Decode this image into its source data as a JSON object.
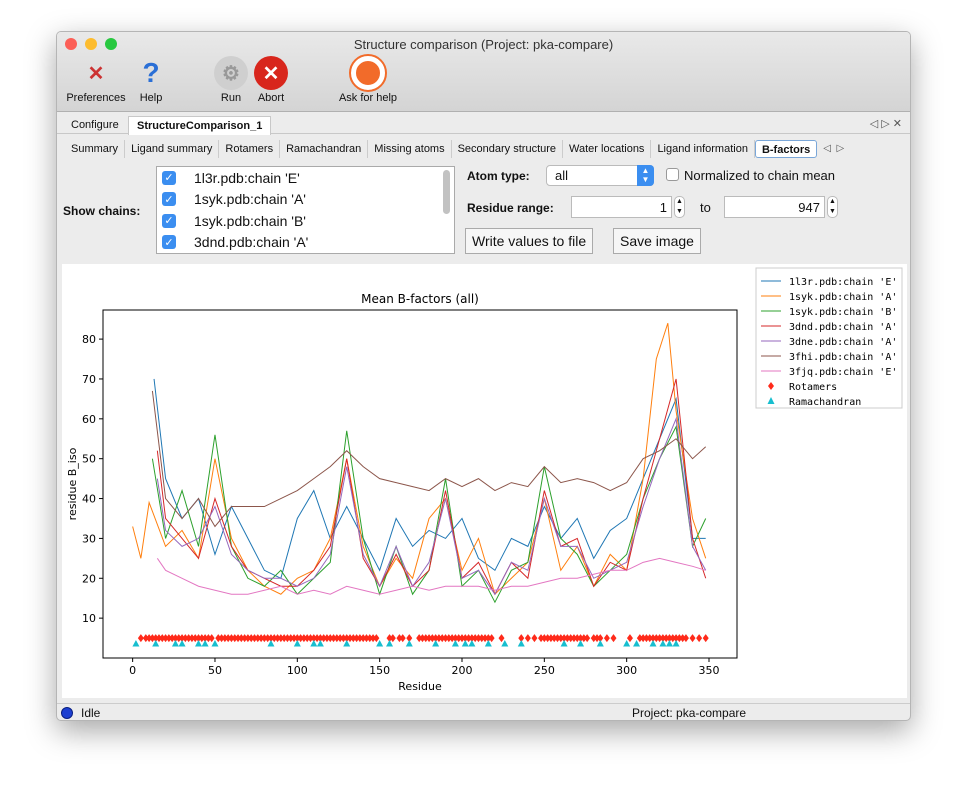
{
  "window": {
    "title": "Structure comparison (Project: pka-compare)"
  },
  "toolbar": [
    {
      "label": "Preferences",
      "icon": "preferences-icon"
    },
    {
      "label": "Help",
      "icon": "help-icon"
    },
    {
      "label": "Run",
      "icon": "run-gear-icon"
    },
    {
      "label": "Abort",
      "icon": "abort-icon"
    },
    {
      "label": "Ask for help",
      "icon": "lifebuoy-icon"
    }
  ],
  "tabs": [
    {
      "label": "Configure"
    },
    {
      "label": "StructureComparison_1",
      "active": true
    }
  ],
  "subtabs": [
    {
      "label": "Summary"
    },
    {
      "label": "Ligand summary"
    },
    {
      "label": "Rotamers"
    },
    {
      "label": "Ramachandran"
    },
    {
      "label": "Missing atoms"
    },
    {
      "label": "Secondary structure"
    },
    {
      "label": "Water locations"
    },
    {
      "label": "Ligand information"
    },
    {
      "label": "B-factors",
      "active": true
    }
  ],
  "controls": {
    "show_chains_label": "Show chains:",
    "chains": [
      {
        "label": "1l3r.pdb:chain 'E'",
        "checked": true
      },
      {
        "label": "1syk.pdb:chain 'A'",
        "checked": true
      },
      {
        "label": "1syk.pdb:chain 'B'",
        "checked": true
      },
      {
        "label": "3dnd.pdb:chain 'A'",
        "checked": true
      }
    ],
    "atom_type_label": "Atom type:",
    "atom_type_value": "all",
    "normalized_label": "Normalized to chain mean",
    "normalized_checked": false,
    "residue_range_label": "Residue range:",
    "range_from": "1",
    "range_to_label": "to",
    "range_to": "947",
    "write_button": "Write values to file",
    "save_button": "Save image"
  },
  "chart_data": {
    "type": "line",
    "title": "Mean B-factors (all)",
    "xlabel": "Residue",
    "ylabel": "residue B_iso",
    "xlim": [
      -18,
      367
    ],
    "ylim": [
      0,
      87.3
    ],
    "xticks": [
      0,
      50,
      100,
      150,
      200,
      250,
      300,
      350
    ],
    "yticks": [
      10,
      20,
      30,
      40,
      50,
      60,
      70,
      80
    ],
    "legend_position": "outside-right",
    "series": [
      {
        "name": "1l3r.pdb:chain 'E'",
        "color": "#1f77b4",
        "x": [
          13,
          20,
          30,
          40,
          50,
          60,
          70,
          80,
          90,
          100,
          110,
          120,
          130,
          140,
          150,
          160,
          170,
          180,
          190,
          200,
          210,
          220,
          230,
          240,
          250,
          260,
          270,
          280,
          290,
          300,
          310,
          320,
          330,
          340,
          348
        ],
        "y": [
          70,
          45,
          35,
          40,
          26,
          38,
          30,
          22,
          20,
          35,
          42,
          30,
          38,
          30,
          22,
          35,
          28,
          32,
          30,
          35,
          25,
          22,
          30,
          28,
          38,
          30,
          35,
          25,
          32,
          35,
          45,
          55,
          65,
          30,
          30
        ]
      },
      {
        "name": "1syk.pdb:chain 'A'",
        "color": "#ff7f0e",
        "x": [
          0,
          5,
          10,
          20,
          30,
          40,
          50,
          60,
          70,
          80,
          90,
          100,
          110,
          120,
          130,
          140,
          150,
          160,
          170,
          180,
          190,
          200,
          210,
          220,
          230,
          240,
          250,
          260,
          270,
          280,
          290,
          300,
          310,
          318,
          325,
          330,
          340,
          348
        ],
        "y": [
          33,
          25,
          39,
          28,
          32,
          25,
          50,
          30,
          22,
          18,
          16,
          20,
          22,
          30,
          50,
          28,
          18,
          25,
          20,
          35,
          40,
          22,
          30,
          16,
          20,
          24,
          40,
          22,
          28,
          18,
          26,
          22,
          45,
          75,
          84,
          62,
          35,
          25
        ]
      },
      {
        "name": "1syk.pdb:chain 'B'",
        "color": "#2ca02c",
        "x": [
          12,
          20,
          30,
          40,
          50,
          60,
          70,
          80,
          90,
          100,
          110,
          120,
          130,
          140,
          150,
          160,
          170,
          180,
          190,
          200,
          210,
          220,
          230,
          240,
          250,
          260,
          270,
          280,
          290,
          300,
          310,
          320,
          330,
          340,
          348
        ],
        "y": [
          50,
          30,
          42,
          28,
          56,
          28,
          20,
          18,
          22,
          16,
          20,
          24,
          57,
          30,
          16,
          28,
          16,
          22,
          45,
          18,
          22,
          14,
          22,
          24,
          48,
          30,
          26,
          18,
          22,
          26,
          40,
          50,
          58,
          28,
          35
        ]
      },
      {
        "name": "3dnd.pdb:chain 'A'",
        "color": "#d62728",
        "x": [
          15,
          20,
          30,
          40,
          50,
          60,
          70,
          80,
          90,
          100,
          110,
          120,
          130,
          140,
          150,
          160,
          170,
          180,
          190,
          200,
          210,
          220,
          230,
          240,
          250,
          260,
          270,
          280,
          290,
          300,
          310,
          320,
          330,
          340,
          348
        ],
        "y": [
          52,
          35,
          30,
          25,
          40,
          28,
          22,
          20,
          18,
          18,
          22,
          28,
          50,
          25,
          18,
          26,
          18,
          22,
          42,
          20,
          24,
          16,
          24,
          20,
          42,
          28,
          30,
          18,
          24,
          22,
          40,
          55,
          70,
          30,
          20
        ]
      },
      {
        "name": "3dne.pdb:chain 'A'",
        "color": "#9467bd",
        "x": [
          15,
          20,
          30,
          40,
          50,
          60,
          70,
          80,
          90,
          100,
          110,
          120,
          130,
          140,
          150,
          160,
          170,
          180,
          190,
          200,
          210,
          220,
          230,
          240,
          250,
          260,
          270,
          280,
          290,
          300,
          310,
          320,
          330,
          340,
          348
        ],
        "y": [
          45,
          32,
          28,
          30,
          38,
          26,
          22,
          20,
          20,
          18,
          20,
          26,
          48,
          26,
          18,
          28,
          18,
          24,
          40,
          20,
          22,
          16,
          24,
          22,
          40,
          28,
          28,
          20,
          22,
          24,
          38,
          50,
          60,
          28,
          22
        ]
      },
      {
        "name": "3fhi.pdb:chain 'A'",
        "color": "#8c564b",
        "x": [
          12,
          20,
          30,
          40,
          50,
          60,
          70,
          80,
          90,
          100,
          110,
          120,
          130,
          140,
          150,
          160,
          170,
          180,
          190,
          200,
          210,
          220,
          230,
          240,
          250,
          260,
          270,
          280,
          290,
          300,
          310,
          320,
          330,
          340,
          348
        ],
        "y": [
          67,
          40,
          35,
          40,
          33,
          38,
          38,
          38,
          40,
          42,
          45,
          48,
          52,
          48,
          45,
          44,
          43,
          42,
          45,
          43,
          45,
          42,
          44,
          43,
          48,
          44,
          45,
          44,
          42,
          44,
          50,
          52,
          55,
          50,
          53
        ]
      },
      {
        "name": "3fjq.pdb:chain 'E'",
        "color": "#e377c2",
        "x": [
          15,
          20,
          30,
          40,
          50,
          60,
          70,
          80,
          90,
          100,
          110,
          120,
          130,
          140,
          150,
          160,
          170,
          180,
          190,
          200,
          210,
          220,
          230,
          240,
          250,
          260,
          270,
          280,
          290,
          300,
          310,
          320,
          330,
          340,
          348
        ],
        "y": [
          25,
          22,
          20,
          18,
          17,
          16,
          16,
          17,
          18,
          16,
          17,
          16,
          18,
          17,
          16,
          17,
          18,
          17,
          18,
          18,
          18,
          17,
          18,
          18,
          19,
          20,
          20,
          21,
          22,
          22,
          24,
          25,
          24,
          23,
          22
        ]
      }
    ],
    "markers": [
      {
        "name": "Rotamers",
        "color": "#ff2a1a",
        "shape": "diamond",
        "y": 5,
        "x": [
          5,
          8,
          10,
          12,
          14,
          16,
          18,
          20,
          22,
          24,
          26,
          28,
          30,
          32,
          34,
          36,
          38,
          40,
          42,
          44,
          46,
          48,
          52,
          54,
          56,
          58,
          60,
          62,
          64,
          66,
          68,
          70,
          72,
          74,
          76,
          78,
          80,
          82,
          84,
          86,
          88,
          90,
          92,
          94,
          96,
          98,
          100,
          102,
          104,
          106,
          108,
          110,
          112,
          114,
          116,
          118,
          120,
          122,
          124,
          126,
          128,
          130,
          132,
          134,
          136,
          138,
          140,
          142,
          144,
          146,
          148,
          156,
          158,
          162,
          164,
          168,
          174,
          176,
          178,
          180,
          182,
          184,
          186,
          188,
          190,
          192,
          194,
          196,
          198,
          200,
          202,
          204,
          206,
          208,
          210,
          212,
          214,
          216,
          218,
          224,
          236,
          240,
          244,
          248,
          250,
          252,
          254,
          256,
          258,
          260,
          262,
          264,
          266,
          268,
          270,
          272,
          274,
          276,
          280,
          282,
          284,
          288,
          292,
          302,
          308,
          310,
          312,
          314,
          316,
          318,
          320,
          322,
          324,
          326,
          328,
          330,
          332,
          334,
          336,
          340,
          344,
          348
        ]
      },
      {
        "name": "Ramachandran",
        "color": "#17becf",
        "shape": "triangle",
        "y": 3.5,
        "x": [
          2,
          14,
          26,
          30,
          40,
          44,
          50,
          84,
          100,
          110,
          114,
          130,
          150,
          156,
          168,
          184,
          196,
          202,
          206,
          216,
          226,
          236,
          262,
          272,
          284,
          300,
          306,
          316,
          322,
          326,
          330
        ]
      }
    ]
  },
  "status": {
    "state": "Idle",
    "project": "Project: pka-compare"
  }
}
